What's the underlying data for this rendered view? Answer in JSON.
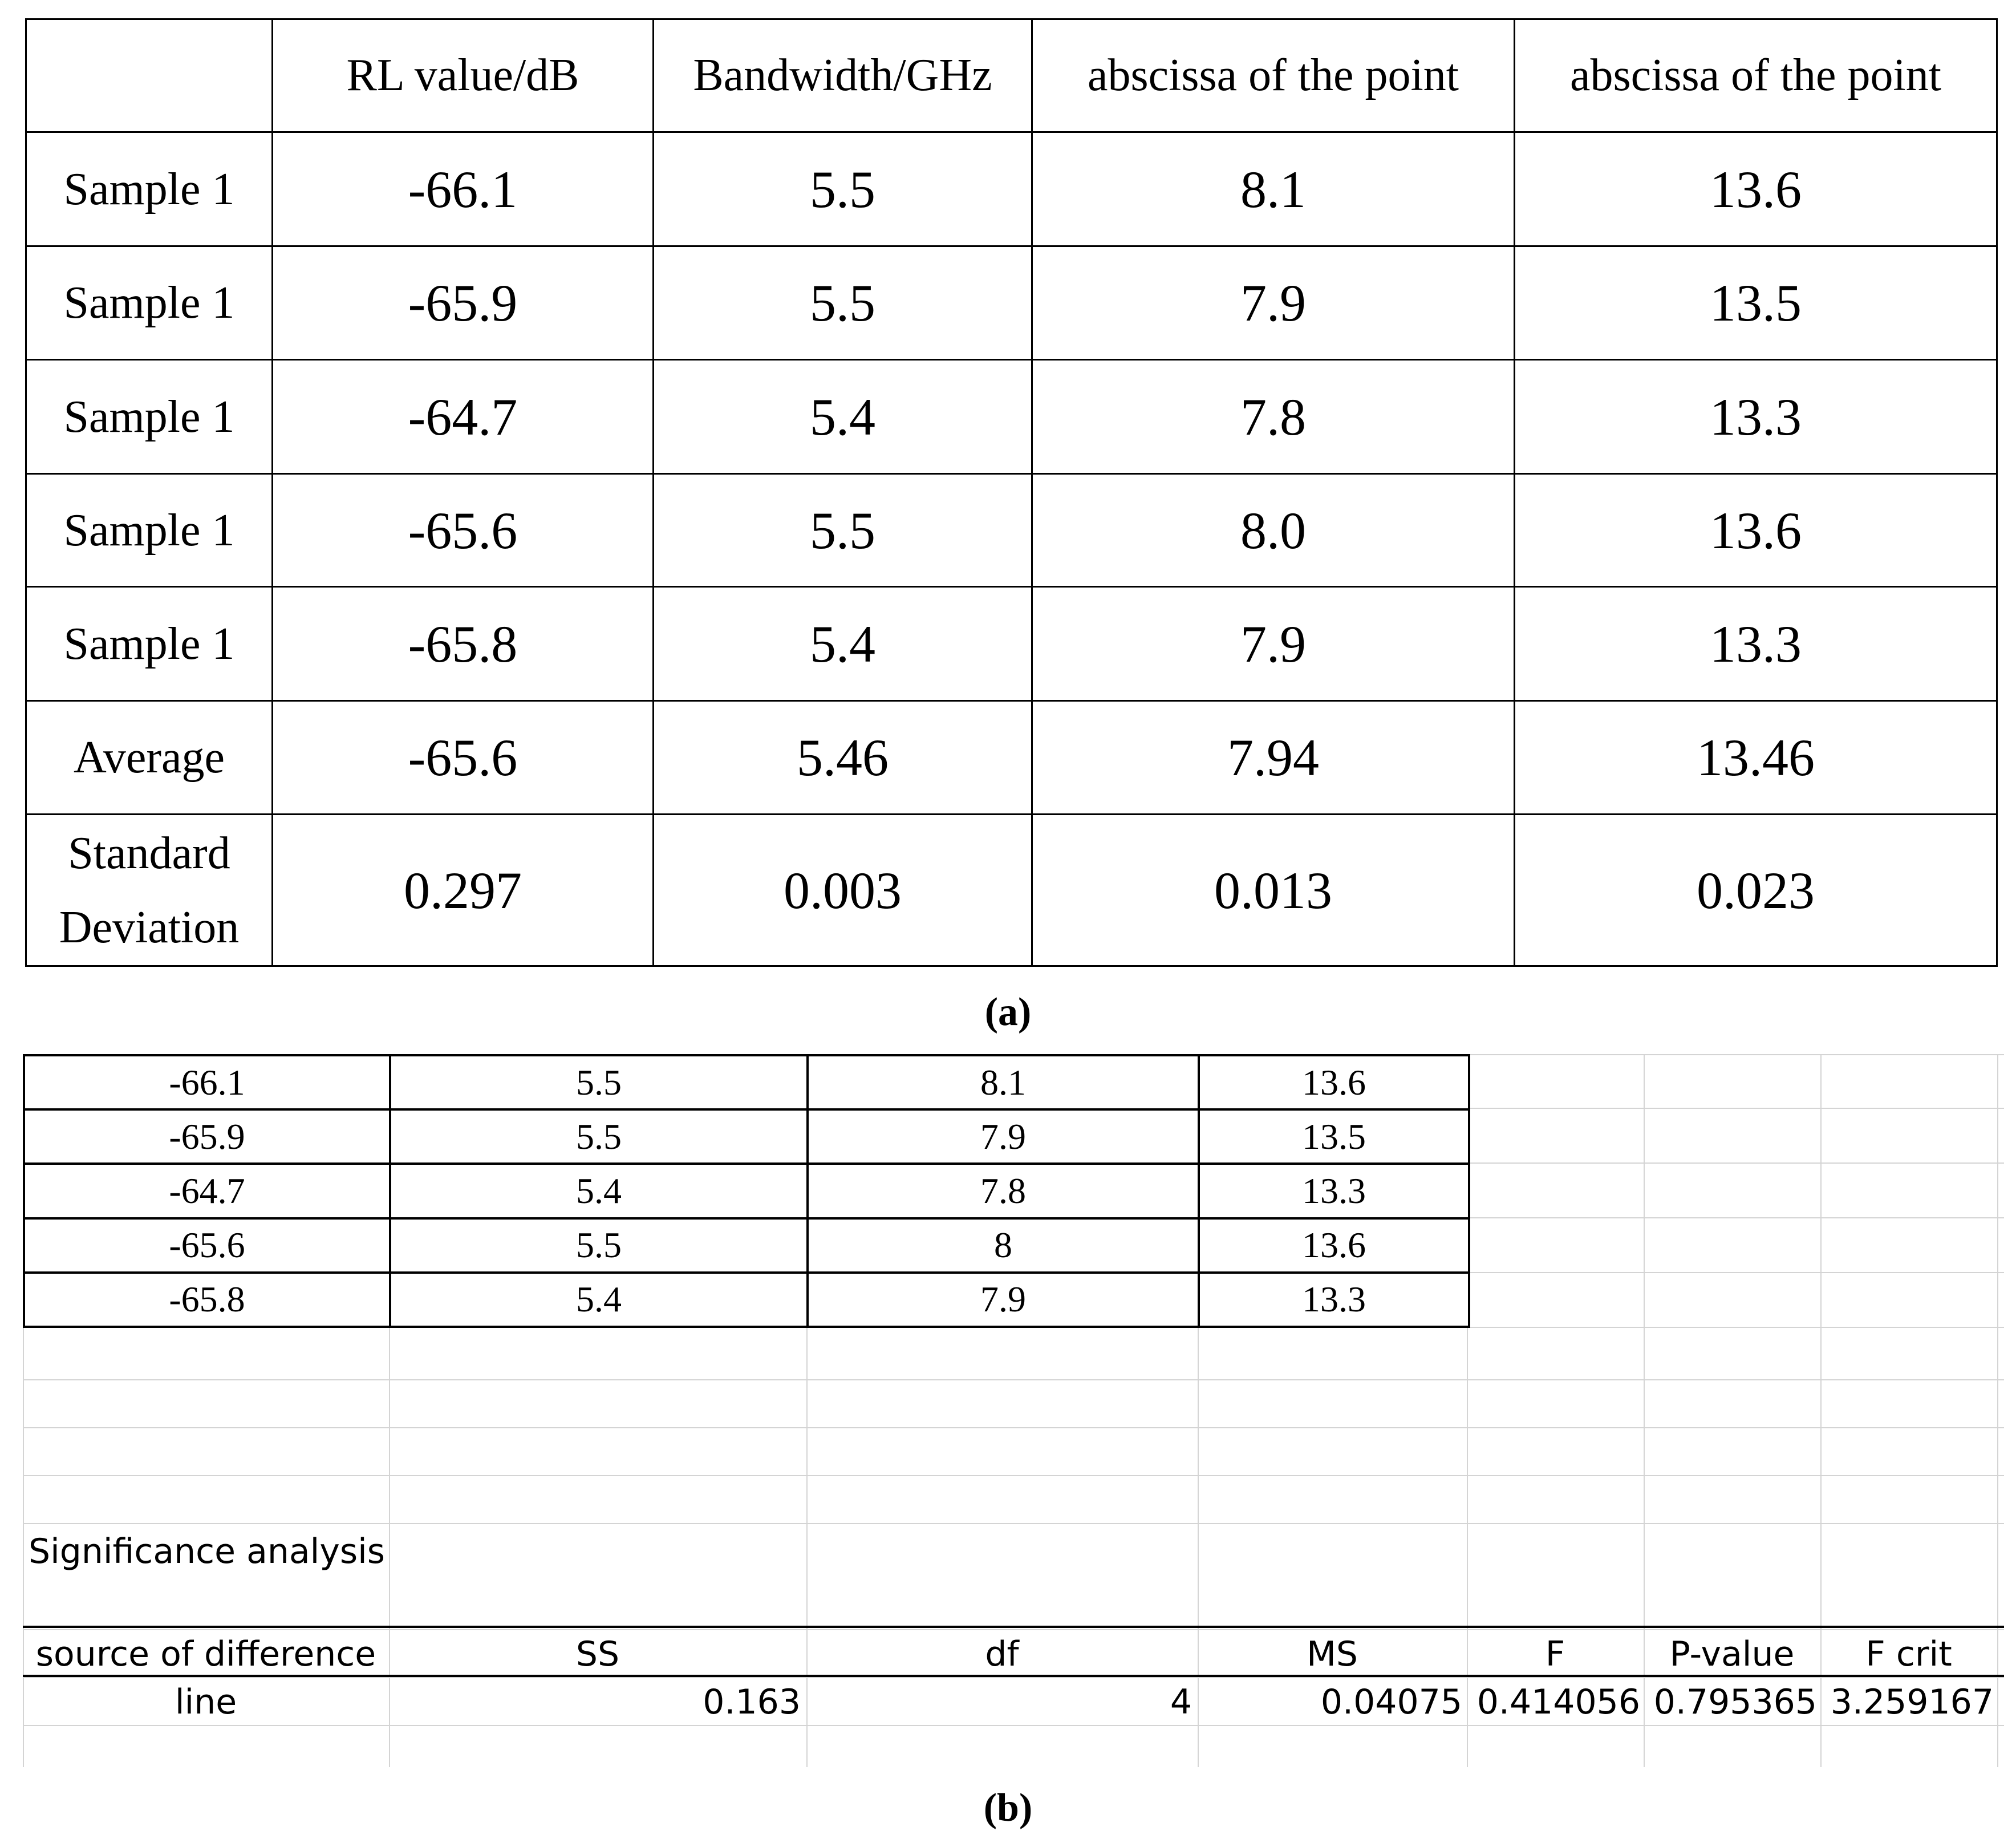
{
  "table_a": {
    "headers": [
      "",
      "RL value/dB",
      "Bandwidth/GHz",
      "abscissa of the point",
      "abscissa of the point"
    ],
    "rows": [
      {
        "label": "Sample 1",
        "values": [
          "-66.1",
          "5.5",
          "8.1",
          "13.6"
        ]
      },
      {
        "label": "Sample 1",
        "values": [
          "-65.9",
          "5.5",
          "7.9",
          "13.5"
        ]
      },
      {
        "label": "Sample 1",
        "values": [
          "-64.7",
          "5.4",
          "7.8",
          "13.3"
        ]
      },
      {
        "label": "Sample 1",
        "values": [
          "-65.6",
          "5.5",
          "8.0",
          "13.6"
        ]
      },
      {
        "label": "Sample 1",
        "values": [
          "-65.8",
          "5.4",
          "7.9",
          "13.3"
        ]
      },
      {
        "label": "Average",
        "values": [
          "-65.6",
          "5.46",
          "7.94",
          "13.46"
        ]
      }
    ],
    "std_row": {
      "label_line1": "Standard",
      "label_line2": "Deviation",
      "values": [
        "0.297",
        "0.003",
        "0.013",
        "0.023"
      ]
    }
  },
  "caption_a": "(a)",
  "sheet_b": {
    "data_rows": [
      [
        "-66.1",
        "5.5",
        "8.1",
        "13.6"
      ],
      [
        "-65.9",
        "5.5",
        "7.9",
        "13.5"
      ],
      [
        "-64.7",
        "5.4",
        "7.8",
        "13.3"
      ],
      [
        "-65.6",
        "5.5",
        "8",
        "13.6"
      ],
      [
        "-65.8",
        "5.4",
        "7.9",
        "13.3"
      ]
    ],
    "section_title": "Significance analysis",
    "anova_headers": [
      "source of difference",
      "SS",
      "df",
      "MS",
      "F",
      "P-value",
      "F crit"
    ],
    "anova_row": [
      "line",
      "0.163",
      "4",
      "0.04075",
      "0.414056",
      "0.795365",
      "3.259167"
    ]
  },
  "caption_b": "(b)"
}
